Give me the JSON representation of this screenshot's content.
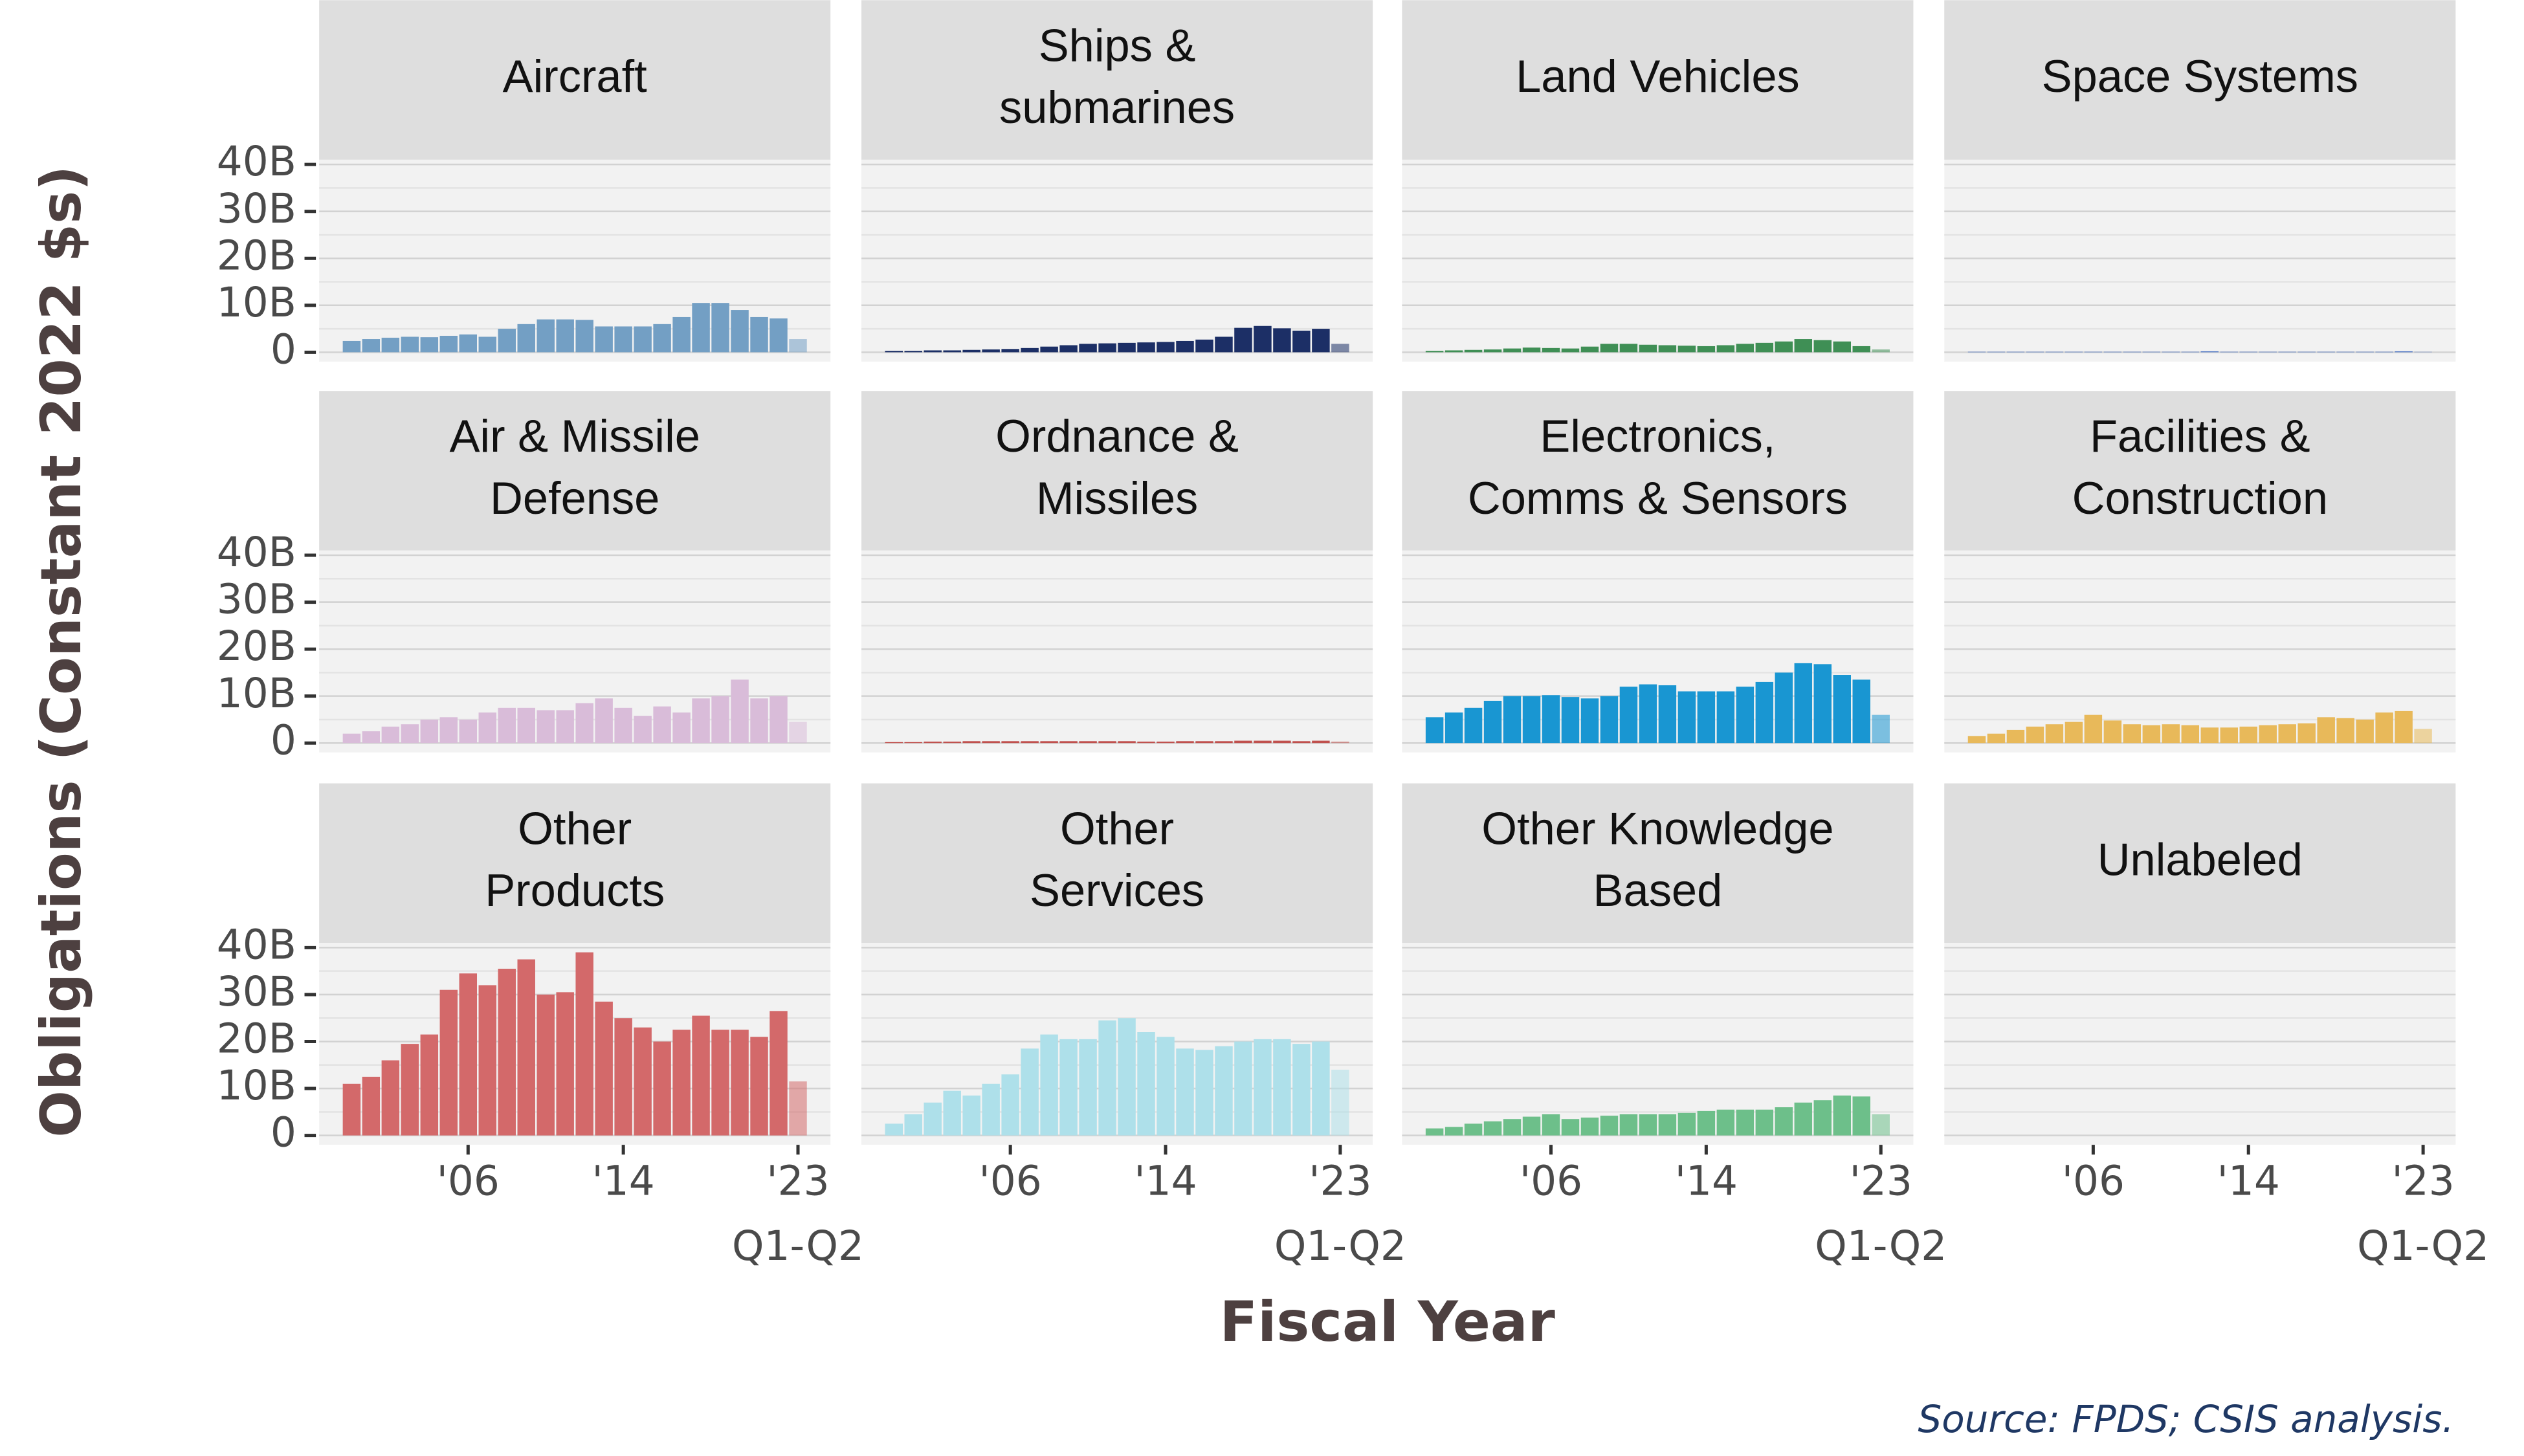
{
  "chart_data": {
    "type": "bar",
    "ylabel": "Obligations (Constant 2022 $s)",
    "xlabel": "Fiscal Year",
    "source": "Source: FPDS; CSIS analysis.",
    "categories": [
      null,
      null,
      null,
      null,
      null,
      null,
      "'06",
      null,
      null,
      null,
      null,
      null,
      null,
      null,
      "'14",
      null,
      null,
      null,
      null,
      null,
      null,
      null,
      null,
      "'23"
    ],
    "partial_label": "Q1-Q2",
    "partial_last": true,
    "ylim": [
      -2,
      41
    ],
    "yticks": [
      0,
      {
        "value": 10,
        "label": "10B"
      },
      {
        "value": 20,
        "label": "20B"
      },
      {
        "value": 30,
        "label": "30B"
      },
      {
        "value": 40,
        "label": "40B"
      }
    ],
    "minor_grid": [
      5,
      15,
      25,
      35
    ],
    "grid": true,
    "facets": [
      {
        "title": [
          "Aircraft"
        ],
        "color": "#739fc4",
        "values": [
          2.4,
          2.8,
          3.1,
          3.3,
          3.2,
          3.5,
          3.8,
          3.3,
          5.0,
          6.0,
          7.0,
          7.0,
          6.9,
          5.5,
          5.5,
          5.5,
          6.0,
          7.5,
          10.5,
          10.5,
          9.0,
          7.5,
          7.2,
          2.8
        ]
      },
      {
        "title": [
          "Ships &",
          "submarines"
        ],
        "color": "#1c2f66",
        "values": [
          0.3,
          0.3,
          0.4,
          0.4,
          0.5,
          0.6,
          0.7,
          0.9,
          1.2,
          1.5,
          1.8,
          1.9,
          2.0,
          2.1,
          2.2,
          2.4,
          2.7,
          3.3,
          5.2,
          5.6,
          5.1,
          4.6,
          5.0,
          1.8
        ]
      },
      {
        "title": [
          "Land Vehicles"
        ],
        "color": "#3f8f55",
        "values": [
          0.3,
          0.4,
          0.5,
          0.6,
          0.8,
          1.0,
          0.9,
          0.8,
          1.2,
          1.8,
          1.8,
          1.6,
          1.5,
          1.4,
          1.3,
          1.5,
          1.8,
          2.0,
          2.3,
          2.8,
          2.6,
          2.3,
          1.3,
          0.6
        ]
      },
      {
        "title": [
          "Space Systems"
        ],
        "color": "#4a72c4",
        "values": [
          0.1,
          0.1,
          0.1,
          0.1,
          0.1,
          0.1,
          0.1,
          0.1,
          0.1,
          0.1,
          0.1,
          0.1,
          0.2,
          0.1,
          0.1,
          0.1,
          0.1,
          0.1,
          0.1,
          0.1,
          0.1,
          0.1,
          0.2,
          0.1
        ]
      },
      {
        "title": [
          "Air & Missile",
          "Defense"
        ],
        "color": "#d9bcd9",
        "values": [
          2.0,
          2.5,
          3.5,
          4.0,
          5.0,
          5.5,
          5.0,
          6.5,
          7.5,
          7.5,
          7.0,
          7.0,
          8.5,
          9.5,
          7.5,
          5.8,
          7.8,
          6.5,
          9.5,
          10.0,
          13.5,
          9.5,
          10.0,
          4.5
        ]
      },
      {
        "title": [
          "Ordnance &",
          "Missiles"
        ],
        "color": "#c0504d",
        "values": [
          0.2,
          0.2,
          0.3,
          0.3,
          0.4,
          0.4,
          0.4,
          0.4,
          0.4,
          0.4,
          0.4,
          0.4,
          0.4,
          0.3,
          0.3,
          0.4,
          0.4,
          0.4,
          0.5,
          0.5,
          0.5,
          0.4,
          0.5,
          0.3
        ]
      },
      {
        "title": [
          "Electronics,",
          "Comms & Sensors"
        ],
        "color": "#1996d2",
        "values": [
          5.5,
          6.5,
          7.5,
          9.0,
          10.0,
          10.0,
          10.2,
          9.8,
          9.5,
          10.0,
          12.0,
          12.5,
          12.3,
          11.0,
          11.0,
          11.0,
          12.0,
          13.0,
          15.0,
          17.0,
          16.8,
          14.5,
          13.5,
          6.0
        ]
      },
      {
        "title": [
          "Facilities &",
          "Construction"
        ],
        "color": "#e8b95a",
        "values": [
          1.5,
          2.0,
          2.8,
          3.5,
          4.0,
          4.5,
          6.0,
          4.8,
          4.0,
          3.8,
          4.0,
          3.8,
          3.3,
          3.3,
          3.5,
          3.8,
          4.0,
          4.2,
          5.5,
          5.3,
          5.0,
          6.5,
          6.8,
          3.0
        ]
      },
      {
        "title": [
          "Other",
          "Products"
        ],
        "color": "#d3696a",
        "values": [
          11.0,
          12.5,
          16.0,
          19.5,
          21.5,
          31.0,
          34.5,
          32.0,
          35.5,
          37.5,
          30.0,
          30.5,
          39.0,
          28.5,
          25.0,
          23.0,
          20.0,
          22.5,
          25.5,
          22.5,
          22.5,
          21.0,
          26.5,
          11.5
        ]
      },
      {
        "title": [
          "Other",
          "Services"
        ],
        "color": "#aee0ea",
        "values": [
          2.5,
          4.5,
          7.0,
          9.5,
          8.5,
          11.0,
          13.0,
          18.5,
          21.5,
          20.5,
          20.5,
          24.5,
          25.0,
          22.0,
          21.0,
          18.5,
          18.2,
          19.0,
          20.0,
          20.5,
          20.5,
          19.5,
          20.0,
          14.0
        ]
      },
      {
        "title": [
          "Other Knowledge",
          "Based"
        ],
        "color": "#6dbf8a",
        "values": [
          1.5,
          1.8,
          2.5,
          3.0,
          3.5,
          4.0,
          4.5,
          3.5,
          3.8,
          4.2,
          4.5,
          4.5,
          4.5,
          4.8,
          5.2,
          5.5,
          5.5,
          5.5,
          6.0,
          7.0,
          7.5,
          8.5,
          8.3,
          4.5
        ]
      },
      {
        "title": [
          "Unlabeled"
        ],
        "color": "#bbbbbb",
        "values": [
          0,
          0,
          0,
          0,
          0,
          0,
          0,
          0,
          0,
          0,
          0,
          0,
          0,
          0,
          0,
          0,
          0,
          0,
          0,
          0,
          0,
          0,
          0,
          0
        ]
      }
    ]
  }
}
